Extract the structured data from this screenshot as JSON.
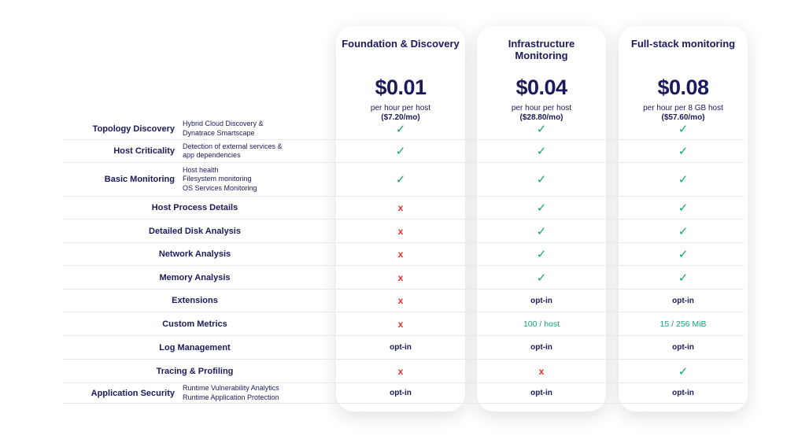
{
  "colors": {
    "navy": "#1a1a5c",
    "green": "#13a377",
    "red": "#ee2c24",
    "row_line": "#e8e8e8",
    "card_bg": "#ffffff"
  },
  "symbols": {
    "check": "✓",
    "cross": "x"
  },
  "plans": [
    {
      "name": "Foundation & Discovery",
      "price": "$0.01",
      "unit": "per hour per host",
      "monthly": "($7.20/mo)"
    },
    {
      "name": "Infrastructure\nMonitoring",
      "price": "$0.04",
      "unit": "per hour per host",
      "monthly": "($28.80/mo)"
    },
    {
      "name": "Full-stack monitoring",
      "price": "$0.08",
      "unit": "per hour per 8 GB host",
      "monthly": "($57.60/mo)"
    }
  ],
  "features": [
    {
      "label": "Topology Discovery",
      "description": "Hybrid Cloud Discovery &\nDynatrace Smartscape",
      "cells": [
        {
          "kind": "check"
        },
        {
          "kind": "check"
        },
        {
          "kind": "check"
        }
      ]
    },
    {
      "label": "Host Criticality",
      "description": "Detection of external services &\napp dependencies",
      "cells": [
        {
          "kind": "check"
        },
        {
          "kind": "check"
        },
        {
          "kind": "check"
        }
      ]
    },
    {
      "label": "Basic Monitoring",
      "description": "Host health\nFilesystem monitoring\nOS Services Monitoring",
      "cells": [
        {
          "kind": "check"
        },
        {
          "kind": "check"
        },
        {
          "kind": "check"
        }
      ]
    },
    {
      "label": "Host Process Details",
      "cells": [
        {
          "kind": "cross"
        },
        {
          "kind": "check"
        },
        {
          "kind": "check"
        }
      ]
    },
    {
      "label": "Detailed Disk Analysis",
      "cells": [
        {
          "kind": "cross"
        },
        {
          "kind": "check"
        },
        {
          "kind": "check"
        }
      ]
    },
    {
      "label": "Network Analysis",
      "cells": [
        {
          "kind": "cross"
        },
        {
          "kind": "check"
        },
        {
          "kind": "check"
        }
      ]
    },
    {
      "label": "Memory Analysis",
      "cells": [
        {
          "kind": "cross"
        },
        {
          "kind": "check"
        },
        {
          "kind": "check"
        }
      ]
    },
    {
      "label": "Extensions",
      "cells": [
        {
          "kind": "cross"
        },
        {
          "kind": "text",
          "text": "opt-in"
        },
        {
          "kind": "text",
          "text": "opt-in"
        }
      ]
    },
    {
      "label": "Custom Metrics",
      "cells": [
        {
          "kind": "cross"
        },
        {
          "kind": "green",
          "text": "100 / host"
        },
        {
          "kind": "green",
          "text": "15 / 256 MiB"
        }
      ]
    },
    {
      "label": "Log Management",
      "cells": [
        {
          "kind": "text",
          "text": "opt-in"
        },
        {
          "kind": "text",
          "text": "opt-in"
        },
        {
          "kind": "text",
          "text": "opt-in"
        }
      ]
    },
    {
      "label": "Tracing & Profiling",
      "cells": [
        {
          "kind": "cross"
        },
        {
          "kind": "cross"
        },
        {
          "kind": "check"
        }
      ]
    },
    {
      "label": "Application Security",
      "description": "Runtime Vulnerability Analytics\nRuntime Application Protection",
      "cells": [
        {
          "kind": "text",
          "text": "opt-in"
        },
        {
          "kind": "text",
          "text": "opt-in"
        },
        {
          "kind": "text",
          "text": "opt-in"
        }
      ]
    }
  ]
}
